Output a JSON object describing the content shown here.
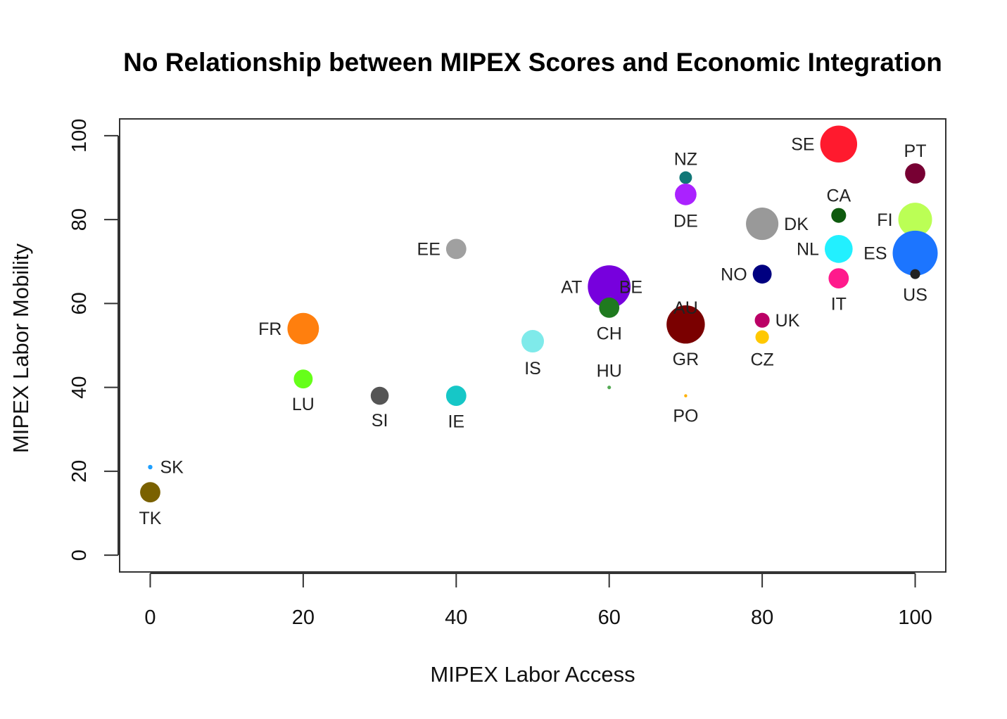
{
  "chart_data": {
    "type": "scatter",
    "title": "No Relationship between MIPEX Scores and Economic Integration",
    "xlabel": "MIPEX Labor Access",
    "ylabel": "MIPEX Labor Mobility",
    "xlim": [
      -4,
      104
    ],
    "ylim": [
      -4,
      104
    ],
    "xticks": [
      0,
      20,
      40,
      60,
      80,
      100
    ],
    "yticks": [
      0,
      20,
      40,
      60,
      80,
      100
    ],
    "grid": false,
    "points": [
      {
        "label": "SK",
        "x": 0,
        "y": 21,
        "size": 0.1,
        "color": "#1E9FFF",
        "label_pos": "right"
      },
      {
        "label": "TK",
        "x": 0,
        "y": 15,
        "size": 0.45,
        "color": "#7A6100",
        "label_pos": "below"
      },
      {
        "label": "FR",
        "x": 20,
        "y": 54,
        "size": 0.7,
        "color": "#FF7F0E",
        "label_pos": "left"
      },
      {
        "label": "LU",
        "x": 20,
        "y": 42,
        "size": 0.42,
        "color": "#66FF19",
        "label_pos": "below"
      },
      {
        "label": "SI",
        "x": 30,
        "y": 38,
        "size": 0.4,
        "color": "#555555",
        "label_pos": "below"
      },
      {
        "label": "EE",
        "x": 40,
        "y": 73,
        "size": 0.45,
        "color": "#A0A0A0",
        "label_pos": "left"
      },
      {
        "label": "IE",
        "x": 40,
        "y": 38,
        "size": 0.45,
        "color": "#16C7C7",
        "label_pos": "below"
      },
      {
        "label": "IS",
        "x": 50,
        "y": 51,
        "size": 0.5,
        "color": "#7FEAEA",
        "label_pos": "below"
      },
      {
        "label": "AT",
        "x": 60,
        "y": 64,
        "size": 0.95,
        "color": "#7700DD",
        "label_pos": "left"
      },
      {
        "label": "BE",
        "x": 60,
        "y": 64,
        "size": 0.0,
        "color": "#7700DD",
        "label_pos": "right"
      },
      {
        "label": "CH",
        "x": 60,
        "y": 59,
        "size": 0.45,
        "color": "#1F7A1F",
        "label_pos": "below"
      },
      {
        "label": "HU",
        "x": 60,
        "y": 40,
        "size": 0.08,
        "color": "#55AA55",
        "label_pos": "above"
      },
      {
        "label": "AU",
        "x": 70,
        "y": 55,
        "size": 0.0,
        "color": "#CC9999",
        "label_pos": "above"
      },
      {
        "label": "GR",
        "x": 70,
        "y": 55,
        "size": 0.85,
        "color": "#7A0000",
        "label_pos": "below"
      },
      {
        "label": "NZ",
        "x": 70,
        "y": 90,
        "size": 0.28,
        "color": "#117777",
        "label_pos": "above"
      },
      {
        "label": "DE",
        "x": 70,
        "y": 86,
        "size": 0.48,
        "color": "#AA22FF",
        "label_pos": "below"
      },
      {
        "label": "PO",
        "x": 70,
        "y": 38,
        "size": 0.04,
        "color": "#FFB000",
        "label_pos": "below"
      },
      {
        "label": "DK",
        "x": 80,
        "y": 79,
        "size": 0.72,
        "color": "#999999",
        "label_pos": "right"
      },
      {
        "label": "NO",
        "x": 80,
        "y": 67,
        "size": 0.42,
        "color": "#000080",
        "label_pos": "left"
      },
      {
        "label": "UK",
        "x": 80,
        "y": 56,
        "size": 0.33,
        "color": "#BB0066",
        "label_pos": "right"
      },
      {
        "label": "CZ",
        "x": 80,
        "y": 52,
        "size": 0.3,
        "color": "#FFC800",
        "label_pos": "below"
      },
      {
        "label": "SE",
        "x": 90,
        "y": 98,
        "size": 0.82,
        "color": "#FF1A2E",
        "label_pos": "left"
      },
      {
        "label": "CA",
        "x": 90,
        "y": 81,
        "size": 0.33,
        "color": "#0E5A0E",
        "label_pos": "above"
      },
      {
        "label": "NL",
        "x": 90,
        "y": 73,
        "size": 0.62,
        "color": "#22F0FF",
        "label_pos": "left"
      },
      {
        "label": "IT",
        "x": 90,
        "y": 66,
        "size": 0.45,
        "color": "#FF1A8C",
        "label_pos": "below"
      },
      {
        "label": "PT",
        "x": 100,
        "y": 91,
        "size": 0.45,
        "color": "#770033",
        "label_pos": "above"
      },
      {
        "label": "FI",
        "x": 100,
        "y": 80,
        "size": 0.75,
        "color": "#BBFF55",
        "label_pos": "left"
      },
      {
        "label": "ES",
        "x": 100,
        "y": 72,
        "size": 1.0,
        "color": "#1C75FF",
        "label_pos": "left"
      },
      {
        "label": "US",
        "x": 100,
        "y": 67,
        "size": 0.22,
        "color": "#222222",
        "label_pos": "below"
      }
    ]
  }
}
